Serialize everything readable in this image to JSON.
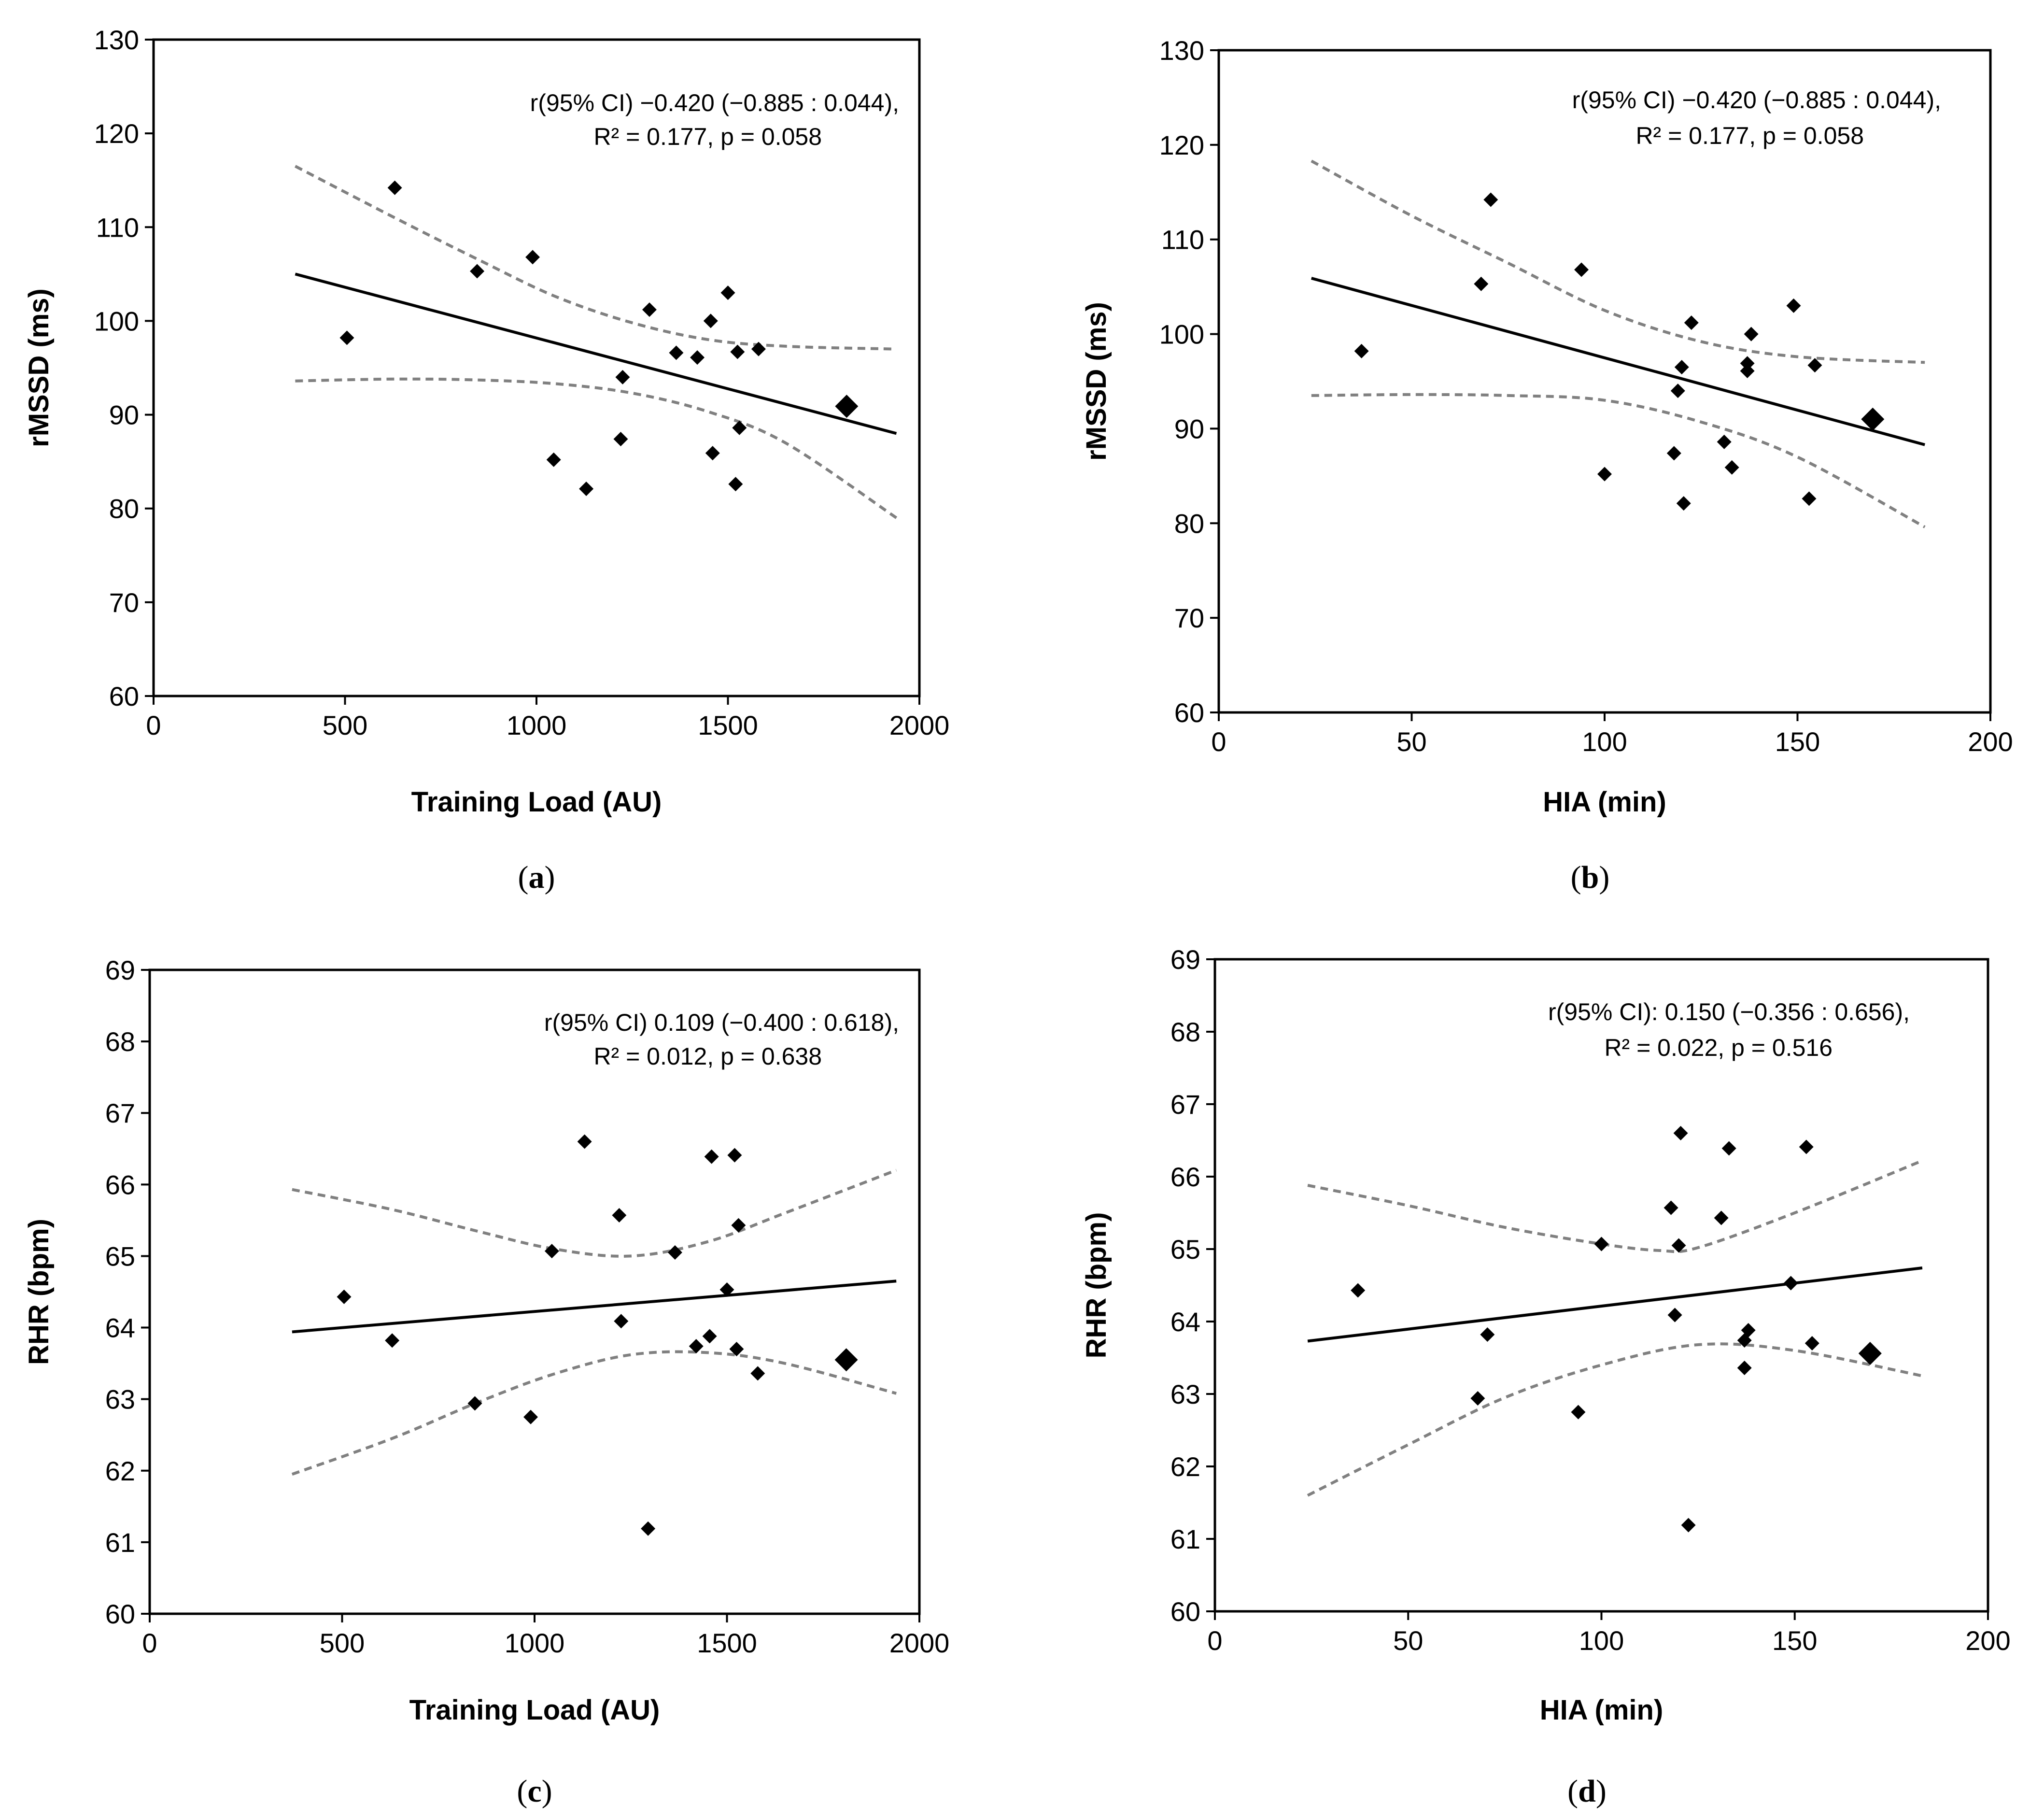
{
  "chart_data": [
    {
      "type": "scatter",
      "panel_label_prefix": "(",
      "panel_letter": "a",
      "panel_label_suffix": ")",
      "xlabel": "Training Load (AU)",
      "ylabel": "rMSSD (ms)",
      "xlim": [
        0,
        2000
      ],
      "ylim": [
        60,
        130
      ],
      "xticks": [
        0,
        500,
        1000,
        1500,
        2000
      ],
      "yticks": [
        60,
        70,
        80,
        90,
        100,
        110,
        120,
        130
      ],
      "annotation": [
        "r(95% CI) −0.420 (−0.885 : 0.044),",
        "R² = 0.177, p = 0.058"
      ],
      "points": [
        {
          "x": 505,
          "y": 98.2
        },
        {
          "x": 630,
          "y": 114.2
        },
        {
          "x": 845,
          "y": 105.3
        },
        {
          "x": 990,
          "y": 106.8
        },
        {
          "x": 1045,
          "y": 85.2
        },
        {
          "x": 1130,
          "y": 82.1
        },
        {
          "x": 1220,
          "y": 87.4
        },
        {
          "x": 1225,
          "y": 94.0
        },
        {
          "x": 1295,
          "y": 101.2
        },
        {
          "x": 1365,
          "y": 96.6
        },
        {
          "x": 1420,
          "y": 96.1
        },
        {
          "x": 1455,
          "y": 100.0
        },
        {
          "x": 1460,
          "y": 85.9
        },
        {
          "x": 1500,
          "y": 103.0
        },
        {
          "x": 1520,
          "y": 82.6
        },
        {
          "x": 1525,
          "y": 96.7
        },
        {
          "x": 1530,
          "y": 88.6
        },
        {
          "x": 1580,
          "y": 97.0
        }
      ],
      "highlight_point": {
        "x": 1810,
        "y": 90.9
      },
      "fit_line": [
        {
          "x": 370,
          "y": 105.0
        },
        {
          "x": 1940,
          "y": 88.0
        }
      ],
      "ci_upper": [
        {
          "x": 370,
          "y": 116.5
        },
        {
          "x": 630,
          "y": 111.0
        },
        {
          "x": 850,
          "y": 106.5
        },
        {
          "x": 1050,
          "y": 102.6
        },
        {
          "x": 1250,
          "y": 99.8
        },
        {
          "x": 1450,
          "y": 98.0
        },
        {
          "x": 1650,
          "y": 97.3
        },
        {
          "x": 1940,
          "y": 97.0
        }
      ],
      "ci_lower": [
        {
          "x": 370,
          "y": 93.6
        },
        {
          "x": 630,
          "y": 93.8
        },
        {
          "x": 850,
          "y": 93.7
        },
        {
          "x": 1050,
          "y": 93.3
        },
        {
          "x": 1250,
          "y": 92.3
        },
        {
          "x": 1450,
          "y": 90.3
        },
        {
          "x": 1650,
          "y": 87.0
        },
        {
          "x": 1940,
          "y": 79.0
        }
      ]
    },
    {
      "type": "scatter",
      "panel_label_prefix": "(",
      "panel_letter": "b",
      "panel_label_suffix": ")",
      "xlabel": "HIA (min)",
      "ylabel": "rMSSD (ms)",
      "xlim": [
        0,
        200
      ],
      "ylim": [
        60,
        130
      ],
      "xticks": [
        0,
        50,
        100,
        150,
        200
      ],
      "yticks": [
        60,
        70,
        80,
        90,
        100,
        110,
        120,
        130
      ],
      "annotation": [
        "r(95% CI) −0.420 (−0.885 : 0.044),",
        "R² = 0.177, p = 0.058"
      ],
      "points": [
        {
          "x": 37,
          "y": 98.2
        },
        {
          "x": 68,
          "y": 105.3
        },
        {
          "x": 70.5,
          "y": 114.2
        },
        {
          "x": 94,
          "y": 106.8
        },
        {
          "x": 100,
          "y": 85.2
        },
        {
          "x": 118,
          "y": 87.4
        },
        {
          "x": 119,
          "y": 94.0
        },
        {
          "x": 120,
          "y": 96.5
        },
        {
          "x": 120.5,
          "y": 82.1
        },
        {
          "x": 122.5,
          "y": 101.2
        },
        {
          "x": 131,
          "y": 88.6
        },
        {
          "x": 133,
          "y": 85.9
        },
        {
          "x": 137,
          "y": 96.1
        },
        {
          "x": 137,
          "y": 96.9
        },
        {
          "x": 138,
          "y": 100.0
        },
        {
          "x": 149,
          "y": 103.0
        },
        {
          "x": 153,
          "y": 82.6
        },
        {
          "x": 154.5,
          "y": 96.7
        }
      ],
      "highlight_point": {
        "x": 169.5,
        "y": 91.0
      },
      "fit_line": [
        {
          "x": 24,
          "y": 105.9
        },
        {
          "x": 183,
          "y": 88.3
        }
      ],
      "ci_upper": [
        {
          "x": 24,
          "y": 118.3
        },
        {
          "x": 50,
          "y": 112.5
        },
        {
          "x": 75,
          "y": 107.5
        },
        {
          "x": 100,
          "y": 102.5
        },
        {
          "x": 125,
          "y": 99.2
        },
        {
          "x": 150,
          "y": 97.6
        },
        {
          "x": 183,
          "y": 97.0
        }
      ],
      "ci_lower": [
        {
          "x": 24,
          "y": 93.5
        },
        {
          "x": 50,
          "y": 93.6
        },
        {
          "x": 75,
          "y": 93.5
        },
        {
          "x": 100,
          "y": 93.0
        },
        {
          "x": 125,
          "y": 90.7
        },
        {
          "x": 150,
          "y": 87.0
        },
        {
          "x": 183,
          "y": 79.6
        }
      ]
    },
    {
      "type": "scatter",
      "panel_label_prefix": "(",
      "panel_letter": "c",
      "panel_label_suffix": ")",
      "xlabel": "Training Load (AU)",
      "ylabel": "RHR (bpm)",
      "xlim": [
        0,
        2000
      ],
      "ylim": [
        60,
        69
      ],
      "xticks": [
        0,
        500,
        1000,
        1500,
        2000
      ],
      "yticks": [
        60,
        61,
        62,
        63,
        64,
        65,
        66,
        67,
        68,
        69
      ],
      "annotation": [
        "r(95% CI) 0.109 (−0.400 : 0.618),",
        "R² = 0.012, p = 0.638"
      ],
      "points": [
        {
          "x": 505,
          "y": 64.43
        },
        {
          "x": 630,
          "y": 63.82
        },
        {
          "x": 845,
          "y": 62.94
        },
        {
          "x": 990,
          "y": 62.75
        },
        {
          "x": 1045,
          "y": 65.07
        },
        {
          "x": 1130,
          "y": 66.6
        },
        {
          "x": 1220,
          "y": 65.57
        },
        {
          "x": 1225,
          "y": 64.09
        },
        {
          "x": 1295,
          "y": 61.19
        },
        {
          "x": 1365,
          "y": 65.05
        },
        {
          "x": 1420,
          "y": 63.74
        },
        {
          "x": 1455,
          "y": 63.88
        },
        {
          "x": 1460,
          "y": 66.39
        },
        {
          "x": 1500,
          "y": 64.53
        },
        {
          "x": 1520,
          "y": 66.41
        },
        {
          "x": 1525,
          "y": 63.7
        },
        {
          "x": 1530,
          "y": 65.43
        },
        {
          "x": 1580,
          "y": 63.36
        }
      ],
      "highlight_point": {
        "x": 1810,
        "y": 63.55
      },
      "fit_line": [
        {
          "x": 370,
          "y": 63.94
        },
        {
          "x": 1940,
          "y": 64.65
        }
      ],
      "ci_upper": [
        {
          "x": 370,
          "y": 65.93
        },
        {
          "x": 630,
          "y": 65.65
        },
        {
          "x": 850,
          "y": 65.35
        },
        {
          "x": 1050,
          "y": 65.1
        },
        {
          "x": 1250,
          "y": 65.0
        },
        {
          "x": 1450,
          "y": 65.2
        },
        {
          "x": 1650,
          "y": 65.6
        },
        {
          "x": 1940,
          "y": 66.2
        }
      ],
      "ci_lower": [
        {
          "x": 370,
          "y": 61.95
        },
        {
          "x": 630,
          "y": 62.45
        },
        {
          "x": 850,
          "y": 62.95
        },
        {
          "x": 1050,
          "y": 63.35
        },
        {
          "x": 1250,
          "y": 63.62
        },
        {
          "x": 1450,
          "y": 63.65
        },
        {
          "x": 1650,
          "y": 63.5
        },
        {
          "x": 1940,
          "y": 63.08
        }
      ]
    },
    {
      "type": "scatter",
      "panel_label_prefix": "(",
      "panel_letter": "d",
      "panel_label_suffix": ")",
      "xlabel": "HIA (min)",
      "ylabel": "RHR (bpm)",
      "xlim": [
        0,
        200
      ],
      "ylim": [
        60,
        69
      ],
      "xticks": [
        0,
        50,
        100,
        150,
        200
      ],
      "yticks": [
        60,
        61,
        62,
        63,
        64,
        65,
        66,
        67,
        68,
        69
      ],
      "annotation": [
        "r(95% CI): 0.150 (−0.356 : 0.656),",
        "R² = 0.022, p = 0.516"
      ],
      "points": [
        {
          "x": 37,
          "y": 64.43
        },
        {
          "x": 68,
          "y": 62.94
        },
        {
          "x": 70.5,
          "y": 63.82
        },
        {
          "x": 94,
          "y": 62.75
        },
        {
          "x": 100,
          "y": 65.07
        },
        {
          "x": 118,
          "y": 65.57
        },
        {
          "x": 119,
          "y": 64.09
        },
        {
          "x": 120,
          "y": 65.05
        },
        {
          "x": 120.5,
          "y": 66.6
        },
        {
          "x": 122.5,
          "y": 61.19
        },
        {
          "x": 131,
          "y": 65.43
        },
        {
          "x": 133,
          "y": 66.39
        },
        {
          "x": 137,
          "y": 63.74
        },
        {
          "x": 137,
          "y": 63.36
        },
        {
          "x": 138,
          "y": 63.88
        },
        {
          "x": 149,
          "y": 64.53
        },
        {
          "x": 153,
          "y": 66.41
        },
        {
          "x": 154.5,
          "y": 63.7
        }
      ],
      "highlight_point": {
        "x": 169.5,
        "y": 63.56
      },
      "fit_line": [
        {
          "x": 24,
          "y": 63.73
        },
        {
          "x": 183,
          "y": 64.74
        }
      ],
      "ci_upper": [
        {
          "x": 24,
          "y": 65.88
        },
        {
          "x": 50,
          "y": 65.6
        },
        {
          "x": 75,
          "y": 65.3
        },
        {
          "x": 100,
          "y": 65.07
        },
        {
          "x": 115,
          "y": 64.98
        },
        {
          "x": 125,
          "y": 65.02
        },
        {
          "x": 150,
          "y": 65.5
        },
        {
          "x": 183,
          "y": 66.22
        }
      ],
      "ci_lower": [
        {
          "x": 24,
          "y": 61.6
        },
        {
          "x": 50,
          "y": 62.3
        },
        {
          "x": 75,
          "y": 62.95
        },
        {
          "x": 100,
          "y": 63.4
        },
        {
          "x": 125,
          "y": 63.68
        },
        {
          "x": 150,
          "y": 63.6
        },
        {
          "x": 183,
          "y": 63.25
        }
      ]
    }
  ]
}
